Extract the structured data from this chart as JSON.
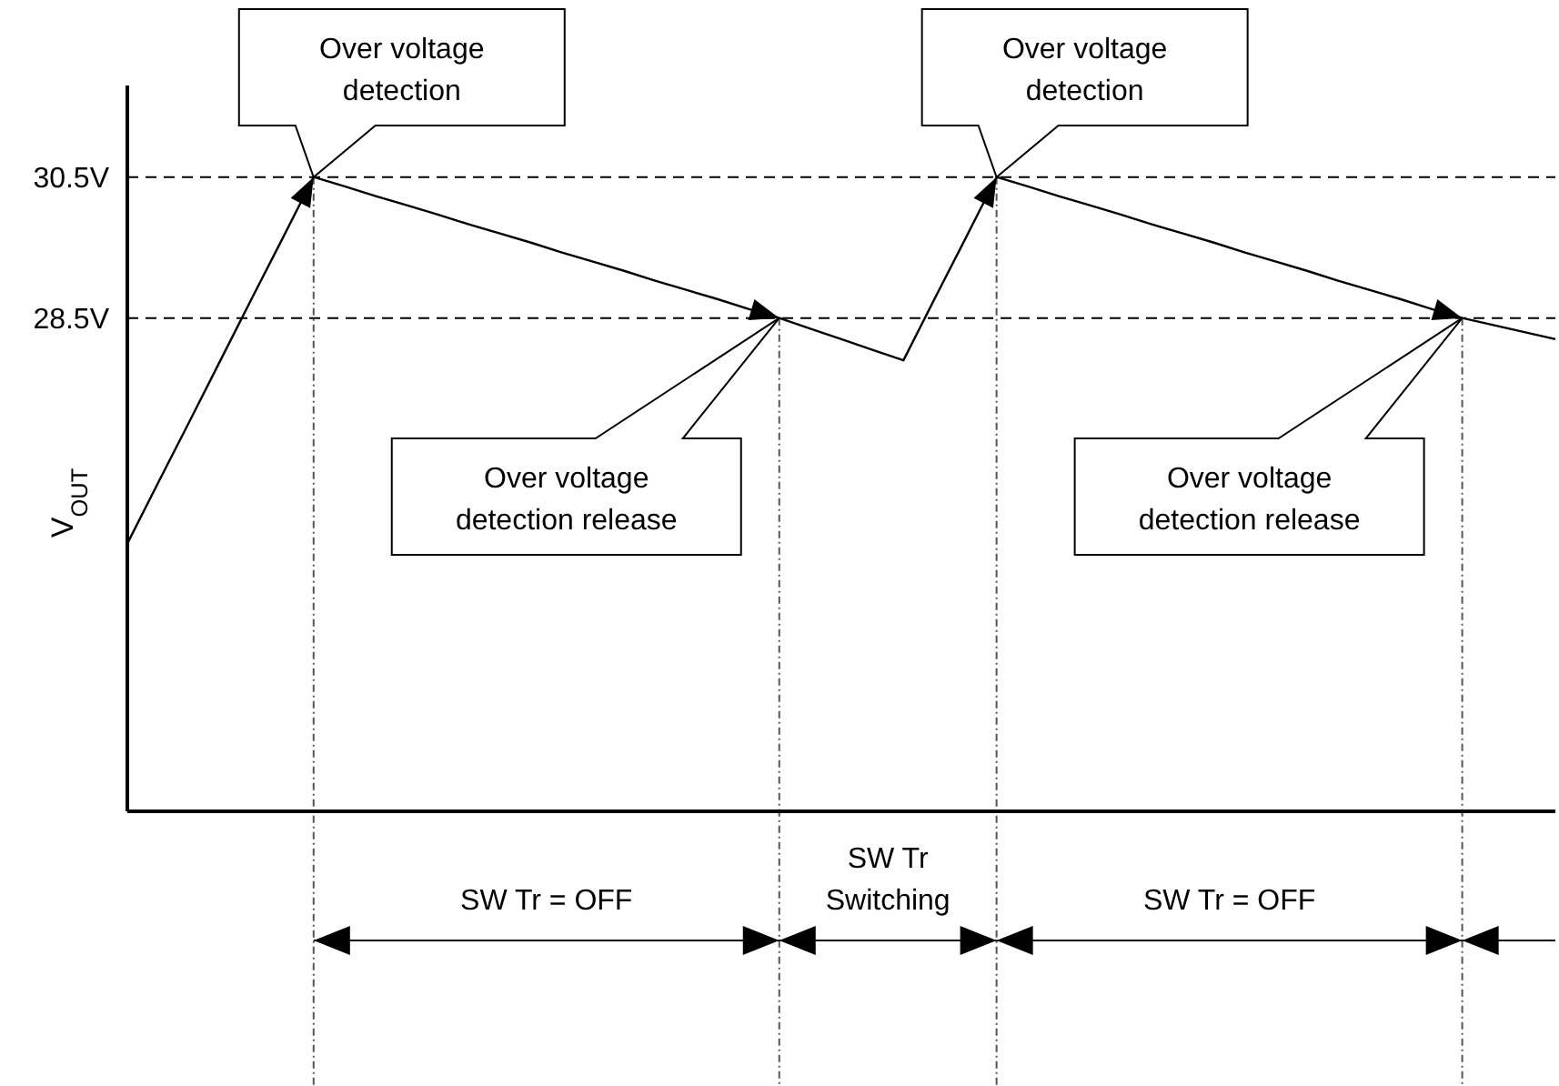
{
  "chart_data": {
    "type": "line",
    "ylabel": "V$_{OUT}$",
    "categories": [
      null,
      null,
      null,
      null,
      null,
      null,
      null,
      null,
      null,
      null,
      null,
      null,
      null,
      null,
      null,
      null,
      null,
      null,
      null,
      null,
      null,
      null,
      null,
      null,
      null,
      null,
      null,
      null,
      null,
      null,
      null,
      null,
      null,
      null,
      null,
      null,
      null,
      null,
      null,
      null,
      null,
      null,
      null,
      null,
      null,
      null,
      null
    ],
    "ylim": [
      21.5,
      31.8
    ],
    "yticks": [
      {
        "value": 28.5,
        "label": "28.5V"
      },
      {
        "value": 30.5,
        "label": "30.5V"
      }
    ],
    "tick_labels": "y",
    "grid": true,
    "marker": "none",
    "line_style": "solid",
    "series": [
      {
        "color": "#000000",
        "values": [
          25.3,
          26.17,
          27.03,
          27.9,
          28.77,
          29.63,
          30.5,
          30.37,
          30.23,
          30.1,
          29.97,
          29.83,
          29.7,
          29.57,
          29.43,
          29.3,
          29.17,
          29.03,
          28.9,
          28.77,
          28.63,
          28.5,
          28.35,
          28.2,
          28.05,
          27.9,
          28.77,
          29.63,
          30.5,
          30.37,
          30.23,
          30.1,
          29.97,
          29.83,
          29.7,
          29.57,
          29.43,
          29.3,
          29.17,
          29.03,
          28.9,
          28.77,
          28.63,
          28.5,
          28.4,
          28.3,
          28.2
        ]
      }
    ],
    "annotations": [
      "Over voltage\ndetection",
      "Over voltage\ndetection release",
      "Over voltage\ndetection",
      "Over voltage\ndetection release",
      "SW Tr = OFF",
      "SW Tr\nSwitching",
      "SW Tr = OFF"
    ]
  }
}
